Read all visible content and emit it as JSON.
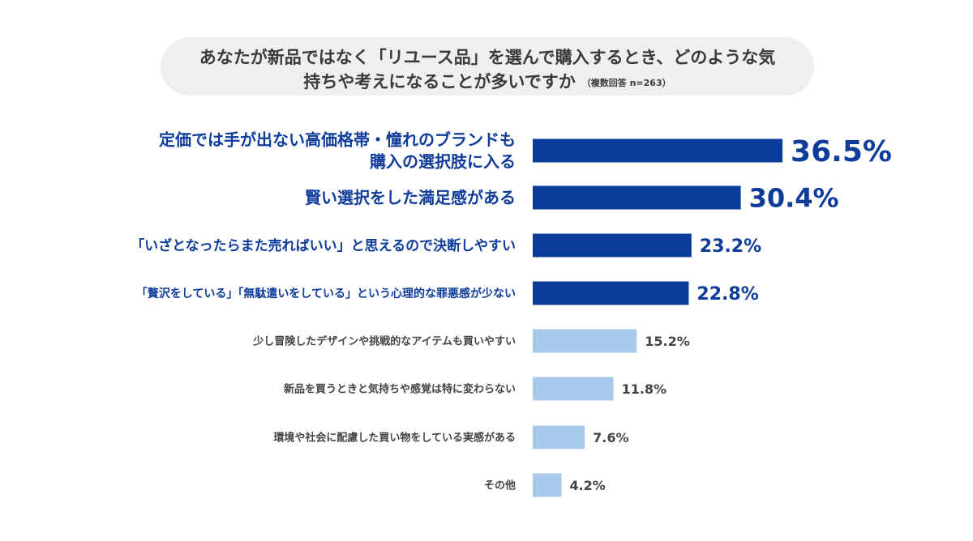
{
  "header": {
    "title_line1": "あなたが新品ではなく「リユース品」を選んで購入するとき、どのような気",
    "title_line2": "持ちや考えになることが多いですか",
    "note": "（複数回答 n=263）"
  },
  "colors": {
    "highlight_bar": "#0b3c9c",
    "normal_bar": "#a9c9ec",
    "highlight_text": "#0f3c9a",
    "normal_text": "#444444",
    "title_bg": "#efeff0"
  },
  "chart_data": {
    "type": "bar",
    "orientation": "horizontal",
    "unit": "%",
    "xlim": [
      0,
      50
    ],
    "grid": false,
    "items": [
      {
        "label_lines": [
          "定価では手が出ない高価格帯・憧れのブランドも",
          "購入の選択肢に入る"
        ],
        "value": 36.5,
        "value_label": "36.5%",
        "highlight": true,
        "tier": 1
      },
      {
        "label_lines": [
          "賢い選択をした満足感がある"
        ],
        "value": 30.4,
        "value_label": "30.4%",
        "highlight": true,
        "tier": 2
      },
      {
        "label_lines": [
          "「いざとなったらまた売ればいい」と思えるので決断しやすい"
        ],
        "value": 23.2,
        "value_label": "23.2%",
        "highlight": true,
        "tier": 3
      },
      {
        "label_lines": [
          "「贅沢をしている」「無駄遣いをしている」という心理的な罪悪感が少ない"
        ],
        "value": 22.8,
        "value_label": "22.8%",
        "highlight": true,
        "tier": 4
      },
      {
        "label_lines": [
          "少し冒険したデザインや挑戦的なアイテムも買いやすい"
        ],
        "value": 15.2,
        "value_label": "15.2%",
        "highlight": false,
        "tier": 5
      },
      {
        "label_lines": [
          "新品を買うときと気持ちや感覚は特に変わらない"
        ],
        "value": 11.8,
        "value_label": "11.8%",
        "highlight": false,
        "tier": 5
      },
      {
        "label_lines": [
          "環境や社会に配慮した買い物をしている実感がある"
        ],
        "value": 7.6,
        "value_label": "7.6%",
        "highlight": false,
        "tier": 5
      },
      {
        "label_lines": [
          "その他"
        ],
        "value": 4.2,
        "value_label": "4.2%",
        "highlight": false,
        "tier": 5
      }
    ]
  }
}
